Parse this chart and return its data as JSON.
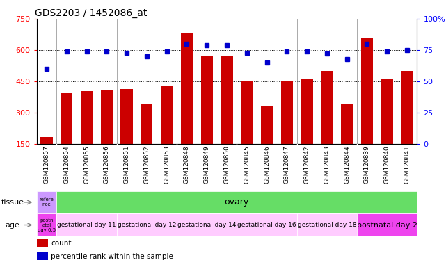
{
  "title": "GDS2203 / 1452086_at",
  "samples": [
    "GSM120857",
    "GSM120854",
    "GSM120855",
    "GSM120856",
    "GSM120851",
    "GSM120852",
    "GSM120853",
    "GSM120848",
    "GSM120849",
    "GSM120850",
    "GSM120845",
    "GSM120846",
    "GSM120847",
    "GSM120842",
    "GSM120843",
    "GSM120844",
    "GSM120839",
    "GSM120840",
    "GSM120841"
  ],
  "counts": [
    185,
    395,
    405,
    410,
    415,
    340,
    430,
    680,
    570,
    575,
    455,
    330,
    450,
    465,
    500,
    345,
    660,
    460,
    500
  ],
  "percentiles": [
    60,
    74,
    74,
    74,
    73,
    70,
    74,
    80,
    79,
    79,
    73,
    65,
    74,
    74,
    72,
    68,
    80,
    74,
    75
  ],
  "ylim_left": [
    150,
    750
  ],
  "ylim_right": [
    0,
    100
  ],
  "yticks_left": [
    150,
    300,
    450,
    600,
    750
  ],
  "yticks_right": [
    0,
    25,
    50,
    75,
    100
  ],
  "bar_color": "#cc0000",
  "dot_color": "#0000cc",
  "tissue_first_label": "refere\nnce",
  "tissue_first_color": "#cc99ff",
  "tissue_rest_label": "ovary",
  "tissue_rest_color": "#66dd66",
  "age_groups": [
    {
      "label": "postn\natal\nday 0.5",
      "color": "#ee44ee",
      "span": 1
    },
    {
      "label": "gestational day 11",
      "color": "#ffccff",
      "span": 3
    },
    {
      "label": "gestational day 12",
      "color": "#ffccff",
      "span": 3
    },
    {
      "label": "gestational day 14",
      "color": "#ffccff",
      "span": 3
    },
    {
      "label": "gestational day 16",
      "color": "#ffccff",
      "span": 3
    },
    {
      "label": "gestational day 18",
      "color": "#ffccff",
      "span": 3
    },
    {
      "label": "postnatal day 2",
      "color": "#ee44ee",
      "span": 3
    }
  ],
  "legend_items": [
    {
      "label": "count",
      "color": "#cc0000"
    },
    {
      "label": "percentile rank within the sample",
      "color": "#0000cc"
    }
  ],
  "group_boundaries": [
    0.5,
    3.5,
    6.5,
    9.5,
    12.5,
    15.5
  ]
}
